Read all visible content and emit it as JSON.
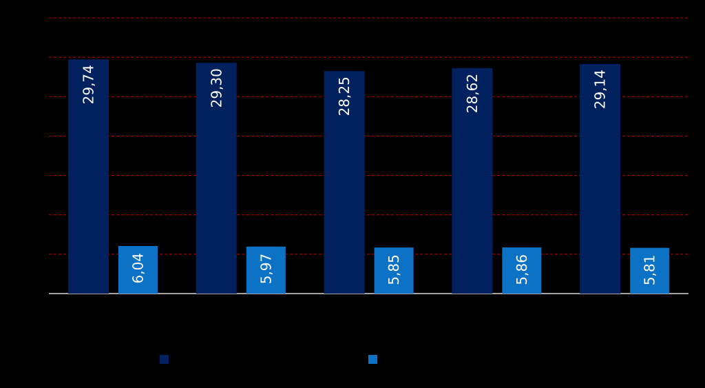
{
  "chart_data": {
    "type": "bar",
    "categories": [
      "",
      "",
      "",
      "",
      ""
    ],
    "series": [
      {
        "values": [
          29.74,
          29.3,
          28.25,
          28.62,
          29.14
        ],
        "color": "#00215E",
        "labels": [
          "29,74",
          "29,30",
          "28,25",
          "28,62",
          "29,14"
        ]
      },
      {
        "values": [
          6.04,
          5.97,
          5.85,
          5.86,
          5.81
        ],
        "color": "#0B72C6",
        "labels": [
          "6,04",
          "5,97",
          "5,85",
          "5,86",
          "5,81"
        ]
      }
    ],
    "ylim": [
      0,
      35
    ],
    "gridlines": true,
    "gridline_color": "#C00000",
    "gridline_style": "dashed",
    "legend": "bottom",
    "data_labels": "inside-vertical",
    "background": "#000000",
    "title": "",
    "xlabel": "",
    "ylabel": ""
  }
}
